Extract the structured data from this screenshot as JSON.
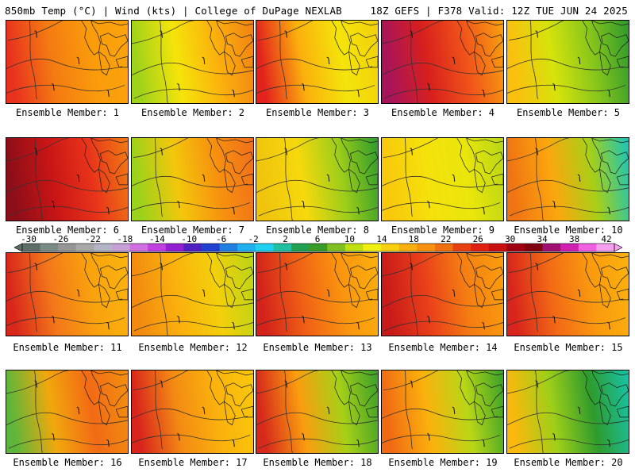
{
  "header": {
    "left": "850mb Temp (°C) | Wind (kts) | College of DuPage NEXLAB",
    "right": "18Z GEFS | F378 Valid: 12Z TUE JUN 24 2025"
  },
  "panels": [
    {
      "label": "Ensemble Member: 1",
      "gradient": [
        "#e8321e",
        "#f47a12",
        "#fa9b0c",
        "#fba40d"
      ]
    },
    {
      "label": "Ensemble Member: 2",
      "gradient": [
        "#9fd21a",
        "#f5e40a",
        "#fbb10d",
        "#f28313"
      ]
    },
    {
      "label": "Ensemble Member: 3",
      "gradient": [
        "#e3221c",
        "#fbb00d",
        "#f4e40b",
        "#f2d10a"
      ]
    },
    {
      "label": "Ensemble Member: 4",
      "gradient": [
        "#a8145a",
        "#d8201c",
        "#f1551a",
        "#f8a00f"
      ]
    },
    {
      "label": "Ensemble Member: 5",
      "gradient": [
        "#fbbf0e",
        "#d6e30c",
        "#88c61b",
        "#2e9a2c"
      ]
    },
    {
      "label": "Ensemble Member: 6",
      "gradient": [
        "#8c0e18",
        "#c81515",
        "#e8341a",
        "#f07a13"
      ]
    },
    {
      "label": "Ensemble Member: 7",
      "gradient": [
        "#9bd21b",
        "#f3c70c",
        "#f7910f",
        "#f0701a"
      ]
    },
    {
      "label": "Ensemble Member: 8",
      "gradient": [
        "#f0c40d",
        "#f6d90d",
        "#9ccd1a",
        "#2f9c2c"
      ]
    },
    {
      "label": "Ensemble Member: 9",
      "gradient": [
        "#f8c80d",
        "#f5e10b",
        "#eae60b",
        "#b9d616"
      ]
    },
    {
      "label": "Ensemble Member: 10",
      "gradient": [
        "#f07413",
        "#fba70e",
        "#a8cf17",
        "#19c5ba"
      ]
    },
    {
      "label": "Ensemble Member: 11",
      "gradient": [
        "#d8261b",
        "#f3771a",
        "#f9a20e",
        "#fbb40d"
      ]
    },
    {
      "label": "Ensemble Member: 12",
      "gradient": [
        "#f28a10",
        "#fbb10d",
        "#f3d00b",
        "#bad516"
      ]
    },
    {
      "label": "Ensemble Member: 13",
      "gradient": [
        "#d3221b",
        "#f06015",
        "#fa940f",
        "#fbb00d"
      ]
    },
    {
      "label": "Ensemble Member: 14",
      "gradient": [
        "#c81a19",
        "#e9401a",
        "#f57f12",
        "#fa9e0e"
      ]
    },
    {
      "label": "Ensemble Member: 15",
      "gradient": [
        "#d8241c",
        "#f26a15",
        "#fa9a0f",
        "#fbb20d"
      ]
    },
    {
      "label": "Ensemble Member: 16",
      "gradient": [
        "#5db63a",
        "#f1a80d",
        "#f26a15",
        "#f2900f"
      ]
    },
    {
      "label": "Ensemble Member: 17",
      "gradient": [
        "#d8241c",
        "#f38a13",
        "#fbb20d",
        "#f9c80c"
      ]
    },
    {
      "label": "Ensemble Member: 18",
      "gradient": [
        "#d6281b",
        "#fa9d0f",
        "#a6d017",
        "#3c9f2a"
      ]
    },
    {
      "label": "Ensemble Member: 19",
      "gradient": [
        "#f06a14",
        "#fbb10d",
        "#b8d716",
        "#3aa12a"
      ]
    },
    {
      "label": "Ensemble Member: 20",
      "gradient": [
        "#fbb80d",
        "#9fcf19",
        "#2e9b2c",
        "#18c3a8"
      ]
    }
  ],
  "colorbar": {
    "colors": [
      "#5d6e68",
      "#7a8a84",
      "#969696",
      "#a8a8a8",
      "#b4b4c8",
      "#c8a0d8",
      "#d070e0",
      "#c040e0",
      "#9020d0",
      "#5020c0",
      "#2040d0",
      "#2080e0",
      "#20b0f0",
      "#20d0f0",
      "#20c0a0",
      "#20a050",
      "#3a9a2a",
      "#80c020",
      "#c0e010",
      "#f0f010",
      "#f8d010",
      "#f8b010",
      "#f89010",
      "#f07010",
      "#e84010",
      "#e02010",
      "#c81010",
      "#a00010",
      "#800010",
      "#a01070",
      "#d020b0",
      "#f060e0",
      "#f8a0f0"
    ],
    "labels": [
      "-30",
      "-26",
      "-22",
      "-18",
      "-14",
      "-10",
      "-6",
      "-2",
      "2",
      "6",
      "10",
      "14",
      "18",
      "22",
      "26",
      "30",
      "34",
      "38",
      "42"
    ]
  }
}
